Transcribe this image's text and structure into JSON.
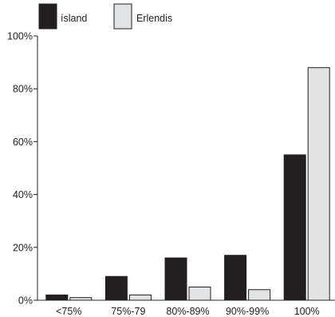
{
  "chart_data": {
    "type": "bar",
    "categories": [
      "<75%",
      "75%-79",
      "80%-89%",
      "90%-99%",
      "100%"
    ],
    "series": [
      {
        "name": "ísland",
        "values": [
          2,
          9,
          16,
          17,
          55
        ],
        "color": "#231f20"
      },
      {
        "name": "Erlendis",
        "values": [
          1,
          2,
          5,
          4,
          88
        ],
        "color": "#e2e3e4"
      }
    ],
    "ylim": [
      0,
      100
    ],
    "yticks": [
      0,
      20,
      40,
      60,
      80,
      100
    ],
    "ytick_labels": [
      "0%",
      "20%",
      "40%",
      "60%",
      "80%",
      "100%"
    ],
    "grid": false,
    "legend_position": "top-left"
  }
}
